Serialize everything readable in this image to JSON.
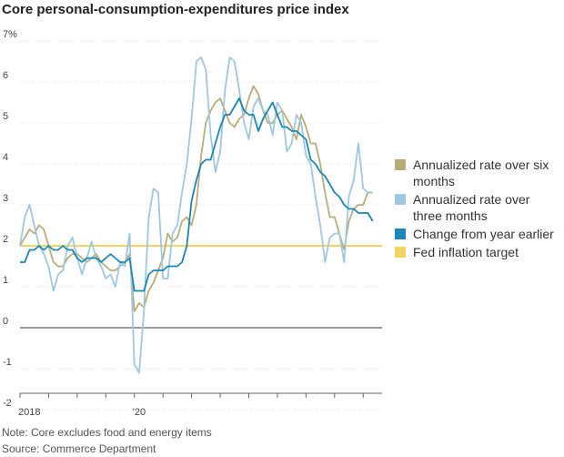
{
  "chart_data": {
    "type": "line",
    "title": "Core personal-consumption-expenditures price index",
    "y_unit_suffix": "%",
    "ylim": [
      -2,
      7
    ],
    "yticks": [
      -2,
      -1,
      0,
      1,
      2,
      3,
      4,
      5,
      6,
      7
    ],
    "ytick_labels": [
      "-2",
      "-1",
      "0",
      "1",
      "2",
      "3",
      "4",
      "5",
      "6",
      "7%"
    ],
    "x_range": [
      2018.0,
      2024.33
    ],
    "x_tick_positions": [
      2018.0,
      2018.5,
      2019.0,
      2019.5,
      2020.0,
      2020.5,
      2021.0,
      2021.5,
      2022.0,
      2022.5,
      2023.0,
      2023.5,
      2024.0
    ],
    "x_tick_labels": [
      {
        "x": 2018.0,
        "label": "2018"
      },
      {
        "x": 2020.0,
        "label": "'20"
      }
    ],
    "grid": true,
    "legend_position": "right",
    "target": {
      "name": "Fed inflation target",
      "value": 2.0,
      "color": "#f2d462"
    },
    "series": [
      {
        "name": "Annualized rate over six months",
        "color": "#b8ac7a",
        "x_start": 2018.0,
        "x_step": 0.08333,
        "values": [
          2.0,
          2.2,
          2.4,
          2.3,
          2.5,
          2.4,
          2.0,
          1.6,
          1.5,
          1.5,
          1.7,
          1.8,
          1.8,
          1.7,
          1.6,
          1.7,
          1.8,
          1.6,
          1.5,
          1.4,
          1.4,
          1.5,
          1.6,
          1.8,
          0.4,
          0.6,
          0.5,
          0.9,
          1.1,
          1.4,
          1.7,
          2.3,
          2.1,
          2.2,
          2.6,
          2.7,
          2.5,
          3.0,
          4.2,
          5.0,
          5.3,
          5.5,
          5.6,
          5.3,
          5.0,
          4.9,
          5.1,
          5.2,
          5.6,
          5.9,
          5.7,
          5.3,
          5.0,
          5.0,
          5.2,
          5.3,
          5.1,
          4.9,
          4.6,
          5.2,
          4.9,
          4.5,
          4.5,
          4.0,
          3.3,
          2.7,
          2.7,
          2.3,
          1.9,
          2.6,
          2.9,
          3.0,
          3.0,
          3.3,
          3.3
        ]
      },
      {
        "name": "Annualized rate over three months",
        "color": "#9ec7e0",
        "x_start": 2018.0,
        "x_step": 0.08333,
        "values": [
          2.0,
          2.7,
          3.0,
          2.5,
          2.0,
          1.8,
          1.5,
          0.9,
          1.3,
          1.4,
          2.0,
          2.2,
          1.7,
          1.3,
          1.7,
          2.1,
          1.7,
          1.5,
          1.2,
          1.3,
          1.0,
          1.6,
          1.5,
          2.3,
          -0.9,
          -1.1,
          0.4,
          2.7,
          3.4,
          3.3,
          1.2,
          1.2,
          2.3,
          2.5,
          3.3,
          4.0,
          5.1,
          6.5,
          6.6,
          6.3,
          4.7,
          3.8,
          4.3,
          5.8,
          6.6,
          6.5,
          5.8,
          5.0,
          4.6,
          5.4,
          5.6,
          5.3,
          5.2,
          4.7,
          5.5,
          5.3,
          4.3,
          4.5,
          5.2,
          5.0,
          4.2,
          4.0,
          3.2,
          2.5,
          1.6,
          2.2,
          2.3,
          2.3,
          1.6,
          3.2,
          3.6,
          4.5,
          3.4,
          3.3,
          3.3
        ]
      },
      {
        "name": "Change from year earlier",
        "color": "#1c86b4",
        "x_start": 2018.0,
        "x_step": 0.08333,
        "values": [
          1.6,
          1.6,
          1.9,
          1.9,
          2.0,
          1.9,
          2.0,
          1.9,
          1.9,
          2.0,
          1.9,
          1.9,
          1.7,
          1.6,
          1.7,
          1.7,
          1.7,
          1.6,
          1.7,
          1.8,
          1.7,
          1.6,
          1.6,
          1.7,
          0.9,
          0.9,
          0.9,
          1.3,
          1.4,
          1.4,
          1.4,
          1.5,
          1.5,
          1.5,
          1.6,
          2.0,
          3.1,
          3.6,
          4.0,
          4.1,
          4.1,
          4.5,
          4.9,
          5.2,
          5.2,
          5.4,
          5.6,
          5.3,
          5.2,
          5.2,
          4.8,
          5.1,
          5.3,
          5.5,
          5.2,
          4.9,
          4.9,
          4.8,
          4.8,
          4.7,
          4.6,
          4.1,
          4.0,
          3.8,
          3.7,
          3.5,
          3.3,
          3.2,
          3.0,
          2.9,
          2.9,
          2.8,
          2.8,
          2.8,
          2.6
        ]
      }
    ],
    "notes": [
      "Note: Core excludes food and energy items",
      "Source: Commerce Department"
    ]
  }
}
